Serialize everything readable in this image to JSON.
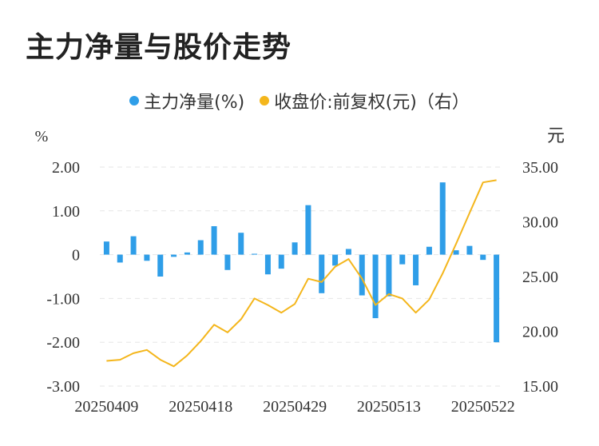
{
  "title": "主力净量与股价走势",
  "legend": {
    "items": [
      {
        "label": "主力净量(%)",
        "color": "#2f9ee8"
      },
      {
        "label": "收盘价:前复权(元)（右）",
        "color": "#f4b61c"
      }
    ]
  },
  "chart_data": {
    "type": "bar",
    "left_axis_unit": "%",
    "right_axis_unit": "元",
    "left_ticks": [
      "2.00",
      "1.00",
      "0",
      "-1.00",
      "-2.00",
      "-3.00"
    ],
    "right_ticks": [
      "35.00",
      "30.00",
      "25.00",
      "20.00",
      "15.00"
    ],
    "ylim_left": [
      -3,
      2
    ],
    "ylim_right": [
      15,
      35
    ],
    "x_tick_labels": [
      "20250409",
      "20250418",
      "20250429",
      "20250513",
      "20250522"
    ],
    "x_tick_index": [
      0,
      7,
      14,
      21,
      28
    ],
    "grid": true,
    "series": [
      {
        "name": "主力净量(%)",
        "type": "bar",
        "color": "#2f9ee8",
        "values": [
          0.3,
          -0.18,
          0.42,
          -0.14,
          -0.5,
          -0.05,
          0.05,
          0.33,
          0.65,
          -0.35,
          0.5,
          0.02,
          -0.45,
          -0.32,
          0.28,
          1.13,
          -0.88,
          -0.25,
          0.13,
          -0.93,
          -1.45,
          -0.95,
          -0.22,
          -0.7,
          0.18,
          1.65,
          0.1,
          0.2,
          -0.12,
          -2.0
        ]
      },
      {
        "name": "收盘价:前复权(元)（右）",
        "type": "line",
        "color": "#f4b61c",
        "values": [
          17.3,
          17.4,
          18.0,
          18.3,
          17.4,
          16.8,
          17.8,
          19.1,
          20.6,
          19.9,
          21.1,
          23.0,
          22.4,
          21.7,
          22.5,
          24.8,
          24.5,
          25.9,
          26.6,
          24.8,
          22.4,
          23.4,
          23.0,
          21.7,
          22.9,
          25.3,
          28.0,
          30.8,
          33.6,
          33.8
        ]
      }
    ]
  }
}
